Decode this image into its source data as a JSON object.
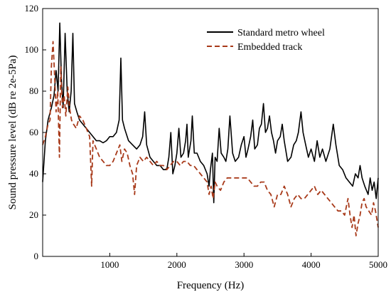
{
  "chart_data": {
    "type": "line",
    "title": "",
    "xlabel": "Frequency (Hz)",
    "ylabel": "Sound pressure level (dB re 2e-5Pa)",
    "xlim": [
      0,
      5000
    ],
    "ylim": [
      0,
      120
    ],
    "x_ticks": [
      1000,
      2000,
      3000,
      4000,
      5000
    ],
    "y_ticks": [
      0,
      20,
      40,
      60,
      80,
      100,
      120
    ],
    "grid": false,
    "legend_position": "top-right",
    "series": [
      {
        "name": "Standard metro wheel",
        "color": "#000000",
        "dash": "solid",
        "points": [
          [
            0,
            36
          ],
          [
            40,
            56
          ],
          [
            80,
            66
          ],
          [
            130,
            72
          ],
          [
            170,
            78
          ],
          [
            200,
            90
          ],
          [
            230,
            80
          ],
          [
            255,
            113
          ],
          [
            280,
            86
          ],
          [
            305,
            72
          ],
          [
            335,
            108
          ],
          [
            365,
            80
          ],
          [
            395,
            70
          ],
          [
            425,
            80
          ],
          [
            450,
            108
          ],
          [
            475,
            74
          ],
          [
            510,
            70
          ],
          [
            550,
            66
          ],
          [
            600,
            64
          ],
          [
            650,
            62
          ],
          [
            700,
            60
          ],
          [
            750,
            58
          ],
          [
            800,
            56
          ],
          [
            850,
            56
          ],
          [
            900,
            55
          ],
          [
            950,
            56
          ],
          [
            1000,
            58
          ],
          [
            1050,
            58
          ],
          [
            1100,
            60
          ],
          [
            1140,
            66
          ],
          [
            1165,
            96
          ],
          [
            1190,
            66
          ],
          [
            1220,
            62
          ],
          [
            1280,
            56
          ],
          [
            1340,
            54
          ],
          [
            1400,
            52
          ],
          [
            1450,
            54
          ],
          [
            1490,
            58
          ],
          [
            1520,
            70
          ],
          [
            1550,
            54
          ],
          [
            1600,
            48
          ],
          [
            1650,
            46
          ],
          [
            1700,
            44
          ],
          [
            1750,
            44
          ],
          [
            1800,
            42
          ],
          [
            1850,
            42
          ],
          [
            1880,
            48
          ],
          [
            1910,
            60
          ],
          [
            1940,
            40
          ],
          [
            1970,
            44
          ],
          [
            2000,
            50
          ],
          [
            2030,
            62
          ],
          [
            2060,
            48
          ],
          [
            2100,
            50
          ],
          [
            2130,
            56
          ],
          [
            2150,
            64
          ],
          [
            2170,
            48
          ],
          [
            2210,
            56
          ],
          [
            2230,
            68
          ],
          [
            2260,
            50
          ],
          [
            2300,
            50
          ],
          [
            2350,
            46
          ],
          [
            2400,
            44
          ],
          [
            2450,
            40
          ],
          [
            2480,
            34
          ],
          [
            2500,
            42
          ],
          [
            2530,
            50
          ],
          [
            2550,
            26
          ],
          [
            2570,
            48
          ],
          [
            2600,
            46
          ],
          [
            2630,
            62
          ],
          [
            2660,
            50
          ],
          [
            2700,
            48
          ],
          [
            2730,
            46
          ],
          [
            2760,
            52
          ],
          [
            2790,
            68
          ],
          [
            2830,
            50
          ],
          [
            2870,
            46
          ],
          [
            2920,
            48
          ],
          [
            2960,
            54
          ],
          [
            3000,
            58
          ],
          [
            3030,
            48
          ],
          [
            3060,
            52
          ],
          [
            3100,
            58
          ],
          [
            3130,
            66
          ],
          [
            3160,
            52
          ],
          [
            3200,
            54
          ],
          [
            3230,
            62
          ],
          [
            3260,
            64
          ],
          [
            3290,
            74
          ],
          [
            3320,
            60
          ],
          [
            3350,
            62
          ],
          [
            3380,
            68
          ],
          [
            3410,
            60
          ],
          [
            3440,
            56
          ],
          [
            3470,
            50
          ],
          [
            3500,
            56
          ],
          [
            3540,
            58
          ],
          [
            3570,
            64
          ],
          [
            3600,
            56
          ],
          [
            3650,
            46
          ],
          [
            3700,
            48
          ],
          [
            3740,
            54
          ],
          [
            3780,
            56
          ],
          [
            3810,
            60
          ],
          [
            3850,
            70
          ],
          [
            3880,
            60
          ],
          [
            3920,
            54
          ],
          [
            3960,
            48
          ],
          [
            4000,
            52
          ],
          [
            4050,
            46
          ],
          [
            4090,
            56
          ],
          [
            4130,
            48
          ],
          [
            4170,
            52
          ],
          [
            4220,
            46
          ],
          [
            4280,
            52
          ],
          [
            4330,
            64
          ],
          [
            4370,
            54
          ],
          [
            4420,
            44
          ],
          [
            4470,
            42
          ],
          [
            4520,
            38
          ],
          [
            4570,
            36
          ],
          [
            4620,
            34
          ],
          [
            4660,
            40
          ],
          [
            4700,
            38
          ],
          [
            4730,
            44
          ],
          [
            4760,
            38
          ],
          [
            4800,
            34
          ],
          [
            4850,
            30
          ],
          [
            4880,
            38
          ],
          [
            4910,
            32
          ],
          [
            4940,
            36
          ],
          [
            4970,
            28
          ],
          [
            5000,
            38
          ]
        ]
      },
      {
        "name": "Embedded track",
        "color": "#a83a1a",
        "dash": "dashed",
        "points": [
          [
            0,
            54
          ],
          [
            40,
            58
          ],
          [
            80,
            64
          ],
          [
            110,
            66
          ],
          [
            130,
            92
          ],
          [
            155,
            104
          ],
          [
            175,
            90
          ],
          [
            200,
            70
          ],
          [
            225,
            80
          ],
          [
            250,
            48
          ],
          [
            270,
            92
          ],
          [
            295,
            72
          ],
          [
            320,
            78
          ],
          [
            345,
            68
          ],
          [
            375,
            82
          ],
          [
            400,
            72
          ],
          [
            430,
            66
          ],
          [
            460,
            64
          ],
          [
            500,
            62
          ],
          [
            550,
            68
          ],
          [
            600,
            66
          ],
          [
            650,
            62
          ],
          [
            700,
            58
          ],
          [
            730,
            34
          ],
          [
            750,
            56
          ],
          [
            800,
            52
          ],
          [
            850,
            48
          ],
          [
            900,
            46
          ],
          [
            950,
            44
          ],
          [
            1000,
            44
          ],
          [
            1050,
            46
          ],
          [
            1100,
            50
          ],
          [
            1150,
            54
          ],
          [
            1180,
            46
          ],
          [
            1220,
            52
          ],
          [
            1260,
            50
          ],
          [
            1300,
            44
          ],
          [
            1340,
            40
          ],
          [
            1370,
            30
          ],
          [
            1400,
            44
          ],
          [
            1450,
            48
          ],
          [
            1500,
            46
          ],
          [
            1550,
            48
          ],
          [
            1600,
            46
          ],
          [
            1650,
            44
          ],
          [
            1700,
            46
          ],
          [
            1750,
            44
          ],
          [
            1800,
            44
          ],
          [
            1850,
            42
          ],
          [
            1900,
            44
          ],
          [
            1950,
            46
          ],
          [
            2000,
            46
          ],
          [
            2050,
            44
          ],
          [
            2100,
            46
          ],
          [
            2150,
            46
          ],
          [
            2200,
            44
          ],
          [
            2250,
            44
          ],
          [
            2300,
            42
          ],
          [
            2350,
            40
          ],
          [
            2400,
            38
          ],
          [
            2450,
            36
          ],
          [
            2480,
            30
          ],
          [
            2510,
            34
          ],
          [
            2540,
            28
          ],
          [
            2570,
            36
          ],
          [
            2600,
            34
          ],
          [
            2650,
            32
          ],
          [
            2700,
            36
          ],
          [
            2750,
            38
          ],
          [
            2800,
            38
          ],
          [
            2850,
            38
          ],
          [
            2900,
            38
          ],
          [
            2950,
            38
          ],
          [
            3000,
            38
          ],
          [
            3050,
            38
          ],
          [
            3100,
            36
          ],
          [
            3150,
            34
          ],
          [
            3200,
            34
          ],
          [
            3250,
            36
          ],
          [
            3300,
            36
          ],
          [
            3350,
            32
          ],
          [
            3400,
            30
          ],
          [
            3450,
            24
          ],
          [
            3500,
            30
          ],
          [
            3550,
            30
          ],
          [
            3600,
            34
          ],
          [
            3650,
            30
          ],
          [
            3700,
            24
          ],
          [
            3750,
            28
          ],
          [
            3800,
            30
          ],
          [
            3850,
            28
          ],
          [
            3900,
            28
          ],
          [
            3950,
            30
          ],
          [
            4000,
            32
          ],
          [
            4050,
            34
          ],
          [
            4100,
            30
          ],
          [
            4150,
            32
          ],
          [
            4200,
            30
          ],
          [
            4250,
            28
          ],
          [
            4300,
            26
          ],
          [
            4350,
            24
          ],
          [
            4400,
            22
          ],
          [
            4450,
            22
          ],
          [
            4500,
            20
          ],
          [
            4550,
            28
          ],
          [
            4580,
            20
          ],
          [
            4610,
            14
          ],
          [
            4640,
            20
          ],
          [
            4670,
            10
          ],
          [
            4700,
            16
          ],
          [
            4730,
            20
          ],
          [
            4760,
            26
          ],
          [
            4790,
            28
          ],
          [
            4820,
            24
          ],
          [
            4860,
            22
          ],
          [
            4900,
            20
          ],
          [
            4930,
            26
          ],
          [
            4960,
            22
          ],
          [
            5000,
            14
          ]
        ]
      }
    ]
  }
}
